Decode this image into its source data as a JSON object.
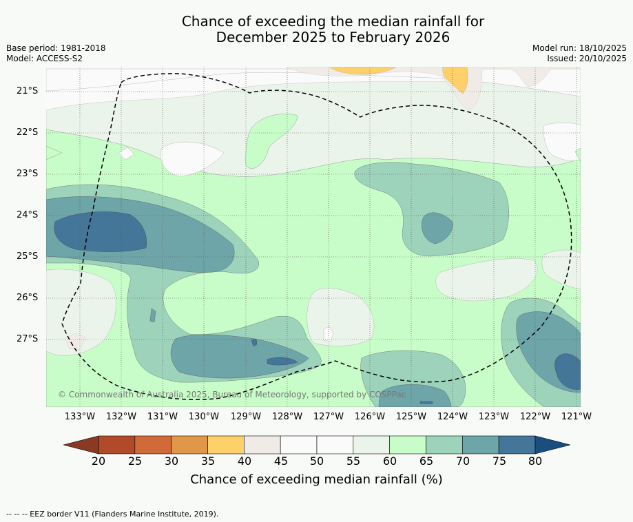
{
  "title_line1": "Chance of exceeding the median rainfall for",
  "title_line2": "December 2025 to February 2026",
  "base_period": "Base period: 1981-2018",
  "model": "Model: ACCESS-S2",
  "model_run": "Model run: 18/10/2025",
  "issued": "Issued: 20/10/2025",
  "copyright": "© Commonwealth of Australia 2025, Bureau of Meteorology, supported by COSPPac",
  "lat_labels": [
    "21°S",
    "22°S",
    "23°S",
    "24°S",
    "25°S",
    "26°S",
    "27°S"
  ],
  "lon_labels": [
    "133°W",
    "132°W",
    "131°W",
    "130°W",
    "129°W",
    "128°W",
    "127°W",
    "126°W",
    "125°W",
    "124°W",
    "123°W",
    "122°W",
    "121°W"
  ],
  "colorbar": {
    "title": "Chance of exceeding median rainfall (%)",
    "ticks": [
      "20",
      "25",
      "30",
      "35",
      "40",
      "45",
      "50",
      "55",
      "60",
      "65",
      "70",
      "75",
      "80"
    ],
    "colors": [
      "#b04a28",
      "#d06a38",
      "#e09848",
      "#fdd06a",
      "#f0ebe6",
      "#fafafa",
      "#fafafa",
      "#eaf4ea",
      "#c8fcc8",
      "#9dd2bb",
      "#6ea5a8",
      "#44769a"
    ],
    "under_color": "#8a3a22",
    "over_color": "#1a4d80"
  },
  "footer": "-- -- -- EEZ border V11 (Flanders Marine Institute, 2019)."
}
